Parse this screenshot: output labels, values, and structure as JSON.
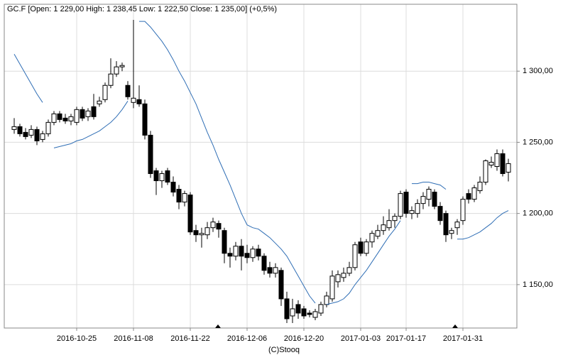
{
  "chart_data": {
    "type": "candlestick",
    "title": "GC.F [Open: 1 229,00  High: 1 238,45  Low: 1 222,50  Close: 1 235,00] (+0,5%)",
    "credit": "(C)Stooq",
    "categories": [
      null,
      null,
      null,
      null,
      null,
      null,
      null,
      null,
      null,
      null,
      null,
      "2016-10-25",
      null,
      null,
      null,
      null,
      null,
      null,
      null,
      null,
      null,
      "2016-11-08",
      null,
      null,
      null,
      null,
      null,
      null,
      null,
      null,
      null,
      "2016-11-22",
      null,
      null,
      null,
      null,
      null,
      null,
      null,
      null,
      null,
      "2016-12-06",
      null,
      null,
      null,
      null,
      null,
      null,
      null,
      null,
      null,
      "2016-12-20",
      null,
      null,
      null,
      null,
      null,
      null,
      null,
      null,
      null,
      "2017-01-03",
      null,
      null,
      null,
      null,
      null,
      null,
      null,
      "2017-01-17",
      null,
      null,
      null,
      null,
      null,
      null,
      null,
      null,
      null,
      "2017-01-31",
      null,
      null,
      null,
      null,
      null,
      null,
      null,
      null
    ],
    "open": [
      1259,
      1261,
      1257,
      1255,
      1259,
      1252,
      1256,
      1264,
      1270,
      1267,
      1265,
      1264,
      1273,
      1268,
      1275,
      1277,
      1280,
      1290,
      1298,
      1303,
      1290,
      1278,
      1280,
      1277,
      1255,
      1230,
      1223,
      1230,
      1222,
      1217,
      1208,
      1213,
      1188,
      1185,
      1185,
      1190,
      1193,
      1188,
      1172,
      1170,
      1177,
      1172,
      1169,
      1175,
      1170,
      1162,
      1158,
      1160,
      1140,
      1128,
      1136,
      1133,
      1130,
      1127,
      1130,
      1136,
      1140,
      1152,
      1155,
      1158,
      1162,
      1180,
      1172,
      1180,
      1184,
      1188,
      1190,
      1195,
      1198,
      1215,
      1200,
      1200,
      1207,
      1210,
      1215,
      1205,
      1200,
      1186,
      1190,
      1195,
      1214,
      1210,
      1216,
      1222,
      1234,
      1233,
      1242,
      1229
    ],
    "high": [
      1267,
      1263,
      1260,
      1262,
      1261,
      1258,
      1266,
      1272,
      1272,
      1270,
      1270,
      1275,
      1275,
      1274,
      1284,
      1282,
      1292,
      1309,
      1307,
      1306,
      1293,
      1336,
      1290,
      1280,
      1258,
      1232,
      1230,
      1232,
      1226,
      1220,
      1216,
      1215,
      1192,
      1190,
      1194,
      1197,
      1195,
      1190,
      1176,
      1180,
      1182,
      1178,
      1177,
      1178,
      1172,
      1166,
      1165,
      1162,
      1145,
      1140,
      1139,
      1135,
      1132,
      1133,
      1138,
      1145,
      1160,
      1160,
      1162,
      1166,
      1180,
      1183,
      1182,
      1188,
      1192,
      1198,
      1203,
      1200,
      1216,
      1217,
      1205,
      1210,
      1215,
      1219,
      1217,
      1208,
      1202,
      1190,
      1196,
      1212,
      1217,
      1220,
      1226,
      1238,
      1240,
      1245,
      1245,
      1238.45
    ],
    "low": [
      1256,
      1254,
      1252,
      1253,
      1248,
      1250,
      1254,
      1262,
      1264,
      1263,
      1262,
      1262,
      1265,
      1265,
      1266,
      1275,
      1278,
      1288,
      1296,
      1300,
      1280,
      1274,
      1275,
      1252,
      1225,
      1213,
      1218,
      1220,
      1212,
      1203,
      1205,
      1185,
      1180,
      1176,
      1182,
      1187,
      1183,
      1165,
      1162,
      1167,
      1160,
      1165,
      1166,
      1167,
      1157,
      1155,
      1155,
      1135,
      1123,
      1123,
      1126,
      1126,
      1127,
      1125,
      1128,
      1134,
      1138,
      1148,
      1152,
      1156,
      1160,
      1170,
      1170,
      1176,
      1182,
      1185,
      1188,
      1190,
      1196,
      1197,
      1196,
      1197,
      1203,
      1205,
      1203,
      1192,
      1180,
      1182,
      1185,
      1192,
      1207,
      1208,
      1214,
      1220,
      1232,
      1230,
      1226,
      1222.5
    ],
    "close": [
      1261,
      1256,
      1254,
      1259,
      1251,
      1256,
      1264,
      1270,
      1266,
      1265,
      1268,
      1273,
      1267,
      1272,
      1268,
      1279,
      1290,
      1298,
      1303,
      1304,
      1282,
      1281,
      1277,
      1255,
      1228,
      1223,
      1228,
      1222,
      1215,
      1208,
      1214,
      1187,
      1185,
      1186,
      1190,
      1194,
      1189,
      1172,
      1170,
      1177,
      1170,
      1169,
      1175,
      1170,
      1160,
      1158,
      1162,
      1140,
      1126,
      1133,
      1130,
      1128,
      1129,
      1131,
      1136,
      1142,
      1156,
      1157,
      1158,
      1162,
      1178,
      1172,
      1180,
      1186,
      1188,
      1192,
      1195,
      1198,
      1214,
      1200,
      1202,
      1207,
      1212,
      1217,
      1205,
      1195,
      1185,
      1188,
      1194,
      1210,
      1210,
      1218,
      1222,
      1237,
      1236,
      1242,
      1228,
      1235
    ],
    "series": [
      {
        "color": "#2f6eb5",
        "values": [
          1312,
          1305,
          1298,
          1291,
          1284,
          1278,
          null,
          1246,
          1247,
          1248,
          1249,
          1251,
          1252,
          1254,
          1256,
          1258,
          1261,
          1264,
          1268,
          1273,
          1279,
          null,
          1335,
          1335,
          1331,
          1326,
          1321,
          1315,
          1308,
          1300,
          1293,
          1285,
          1277,
          1267,
          1257,
          1248,
          1238,
          1229,
          1220,
          1210,
          1200,
          1192,
          1190,
          1189,
          1186,
          1183,
          1179,
          1175,
          1170,
          1163,
          1156,
          1149,
          1142,
          1137,
          null,
          1136,
          1137,
          1138,
          1140,
          1144,
          1150,
          1155,
          1160,
          1166,
          1172,
          1178,
          1184,
          1189,
          1195,
          null,
          1221,
          1221,
          1222,
          1222,
          1221,
          1220,
          1217,
          null,
          1182,
          1182,
          1183,
          1185,
          1187,
          1190,
          1193,
          1197,
          1200,
          1202
        ]
      }
    ],
    "ylim": [
      1119.5,
      1347
    ],
    "yticks": [
      {
        "value": 1150,
        "label": "1 150,00"
      },
      {
        "value": 1200,
        "label": "1 200,00"
      },
      {
        "value": 1250,
        "label": "1 250,00"
      },
      {
        "value": 1300,
        "label": "1 300,00"
      }
    ],
    "grid": true
  }
}
